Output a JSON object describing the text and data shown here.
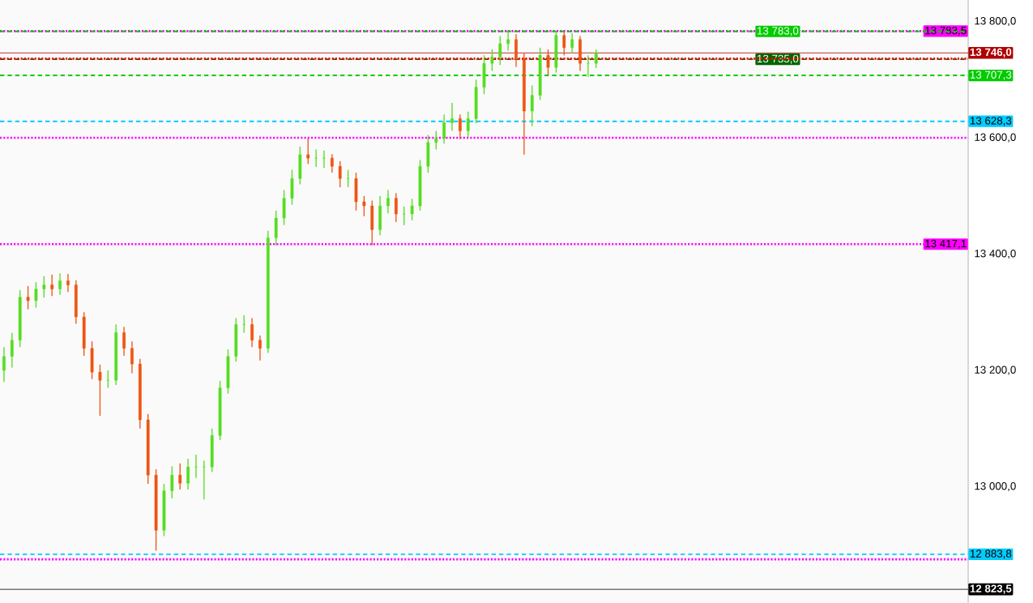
{
  "chart_data": {
    "type": "candlestick",
    "categories": [
      null,
      null,
      null,
      null,
      null,
      null,
      null,
      null,
      null,
      null,
      null,
      null,
      null,
      null,
      null,
      null,
      null,
      null,
      null,
      null,
      null,
      null,
      null,
      null,
      null,
      null,
      null,
      null,
      null,
      null,
      null,
      null,
      null,
      null,
      null,
      null,
      null,
      null,
      null,
      null,
      null,
      null,
      null,
      null,
      null,
      null,
      null,
      null,
      null,
      null,
      null,
      null,
      null,
      null,
      null,
      null,
      null,
      null,
      null,
      null,
      null,
      null,
      null,
      null,
      null,
      null,
      null,
      null,
      null,
      null,
      null,
      null,
      null,
      null,
      null,
      null,
      null,
      null,
      null,
      null,
      null,
      null,
      null,
      null,
      null,
      null,
      null,
      null,
      null,
      null,
      null,
      null,
      null,
      null,
      null,
      null,
      null,
      null,
      null,
      null,
      null,
      null,
      null,
      null,
      null,
      null,
      null,
      null,
      null,
      null,
      null,
      null,
      null,
      null,
      null,
      null,
      null,
      null,
      null,
      null,
      null
    ],
    "ohlc": [
      [
        13200,
        13240,
        13180,
        13224
      ],
      [
        13224,
        13265,
        13205,
        13252
      ],
      [
        13252,
        13338,
        13240,
        13326
      ],
      [
        13326,
        13345,
        13305,
        13320
      ],
      [
        13320,
        13352,
        13308,
        13340
      ],
      [
        13340,
        13362,
        13325,
        13347
      ],
      [
        13347,
        13365,
        13328,
        13340
      ],
      [
        13340,
        13367,
        13330,
        13354
      ],
      [
        13354,
        13366,
        13335,
        13347
      ],
      [
        13347,
        13355,
        13280,
        13292
      ],
      [
        13292,
        13300,
        13225,
        13238
      ],
      [
        13238,
        13250,
        13185,
        13197
      ],
      [
        13197,
        13210,
        13122,
        13183
      ],
      [
        13183,
        13200,
        13170,
        13183
      ],
      [
        13183,
        13279,
        13175,
        13265
      ],
      [
        13265,
        13275,
        13225,
        13238
      ],
      [
        13238,
        13250,
        13195,
        13211
      ],
      [
        13211,
        13220,
        13100,
        13115
      ],
      [
        13115,
        13125,
        13005,
        13020
      ],
      [
        13020,
        13030,
        12890,
        12925
      ],
      [
        12925,
        13005,
        12915,
        12993
      ],
      [
        12993,
        13035,
        12980,
        13020
      ],
      [
        13020,
        13040,
        12995,
        13006
      ],
      [
        13006,
        13048,
        12995,
        13034
      ],
      [
        13034,
        13055,
        13015,
        13034
      ],
      [
        13034,
        13045,
        12978,
        13034
      ],
      [
        13034,
        13100,
        13025,
        13088
      ],
      [
        13088,
        13182,
        13080,
        13170
      ],
      [
        13170,
        13236,
        13160,
        13224
      ],
      [
        13224,
        13290,
        13215,
        13279
      ],
      [
        13279,
        13295,
        13265,
        13279
      ],
      [
        13279,
        13290,
        13240,
        13252
      ],
      [
        13252,
        13260,
        13217,
        13238
      ],
      [
        13238,
        13440,
        13230,
        13428
      ],
      [
        13428,
        13475,
        13415,
        13462
      ],
      [
        13462,
        13510,
        13450,
        13496
      ],
      [
        13496,
        13545,
        13485,
        13530
      ],
      [
        13530,
        13585,
        13520,
        13571
      ],
      [
        13571,
        13599,
        13555,
        13565
      ],
      [
        13565,
        13580,
        13550,
        13565
      ],
      [
        13565,
        13578,
        13548,
        13565
      ],
      [
        13565,
        13572,
        13540,
        13551
      ],
      [
        13551,
        13560,
        13515,
        13530
      ],
      [
        13530,
        13545,
        13515,
        13530
      ],
      [
        13530,
        13540,
        13475,
        13490
      ],
      [
        13490,
        13500,
        13465,
        13483
      ],
      [
        13483,
        13492,
        13415,
        13442
      ],
      [
        13442,
        13500,
        13432,
        13483
      ],
      [
        13483,
        13510,
        13470,
        13496
      ],
      [
        13496,
        13505,
        13455,
        13469
      ],
      [
        13469,
        13482,
        13450,
        13469
      ],
      [
        13469,
        13495,
        13458,
        13483
      ],
      [
        13483,
        13562,
        13475,
        13551
      ],
      [
        13551,
        13605,
        13540,
        13592
      ],
      [
        13592,
        13612,
        13580,
        13599
      ],
      [
        13599,
        13640,
        13590,
        13626
      ],
      [
        13626,
        13660,
        13612,
        13633
      ],
      [
        13633,
        13640,
        13598,
        13612
      ],
      [
        13612,
        13645,
        13600,
        13633
      ],
      [
        13633,
        13700,
        13625,
        13687
      ],
      [
        13687,
        13742,
        13675,
        13728
      ],
      [
        13728,
        13752,
        13715,
        13739
      ],
      [
        13739,
        13775,
        13725,
        13762
      ],
      [
        13762,
        13783,
        13750,
        13769
      ],
      [
        13769,
        13778,
        13722,
        13735
      ],
      [
        13735,
        13745,
        13571,
        13646
      ],
      [
        13646,
        13690,
        13620,
        13673
      ],
      [
        13673,
        13755,
        13665,
        13742
      ],
      [
        13742,
        13752,
        13708,
        13721
      ],
      [
        13721,
        13783,
        13712,
        13776
      ],
      [
        13776,
        13782,
        13742,
        13755
      ],
      [
        13755,
        13780,
        13745,
        13769
      ],
      [
        13769,
        13775,
        13715,
        13728
      ],
      [
        13728,
        13742,
        13705,
        13728
      ],
      [
        13728,
        13752,
        13720,
        13746
      ],
      null,
      null,
      null,
      null,
      null,
      null,
      null,
      null,
      null,
      null,
      null,
      null,
      null,
      null,
      null,
      null,
      null,
      null,
      null,
      null,
      null,
      null,
      null,
      null,
      null,
      null,
      null,
      null,
      null,
      null,
      null,
      null,
      null,
      null,
      null,
      null,
      null,
      null,
      null,
      null,
      null,
      null,
      null,
      null,
      null,
      null
    ],
    "ylim": [
      12800,
      13837
    ],
    "yticks": [
      {
        "value": 13000,
        "label": "13 000,0"
      },
      {
        "value": 13200,
        "label": "13 200,0"
      },
      {
        "value": 13400,
        "label": "13 400,0"
      },
      {
        "value": 13600,
        "label": "13 600,0"
      },
      {
        "value": 13800,
        "label": "13 800,0"
      }
    ],
    "ref_lines": [
      {
        "axis": "y",
        "value": 13783.5,
        "label": "13 783,5",
        "color": "#ff00ff",
        "line_style": "dotted"
      },
      {
        "axis": "y",
        "value": 13746.0,
        "label": "13 746,0",
        "color": "#b00000",
        "line_style": "solid"
      },
      {
        "axis": "y",
        "value": 13628.3,
        "label": "13 628,3",
        "color": "#00ccff",
        "line_style": "dashed"
      },
      {
        "axis": "y",
        "value": 13417.1,
        "label": "13 417,1",
        "color": "#ff00ff",
        "line_style": "dotted"
      },
      {
        "axis": "y",
        "value": 12883.8,
        "label": "12 883,8",
        "color": "#00ccff",
        "line_style": "dashed"
      },
      {
        "axis": "y",
        "value": 12823.5,
        "label": "12 823,5",
        "color": "#000000",
        "line_style": "solid"
      },
      {
        "axis": "y",
        "value": 13783.0,
        "label": "13 783,0",
        "color": "#00cc00",
        "line_style": "dashed"
      },
      {
        "axis": "y",
        "value": 13735.0,
        "label": "13 735,0",
        "color": "#006600",
        "line_style": "dashed"
      },
      {
        "axis": "y",
        "value": 13707.3,
        "label": "13 707,3",
        "color": "#00cc00",
        "line_style": "dashed"
      },
      {
        "axis": "y",
        "value": 13600,
        "color": "#ff00ff",
        "line_style": "dotted"
      },
      {
        "axis": "y",
        "value": 12875,
        "color": "#ff00ff",
        "line_style": "dotted"
      },
      {
        "axis": "y",
        "value": 13736,
        "color": "#ff0000",
        "line_style": "dotted"
      }
    ]
  }
}
